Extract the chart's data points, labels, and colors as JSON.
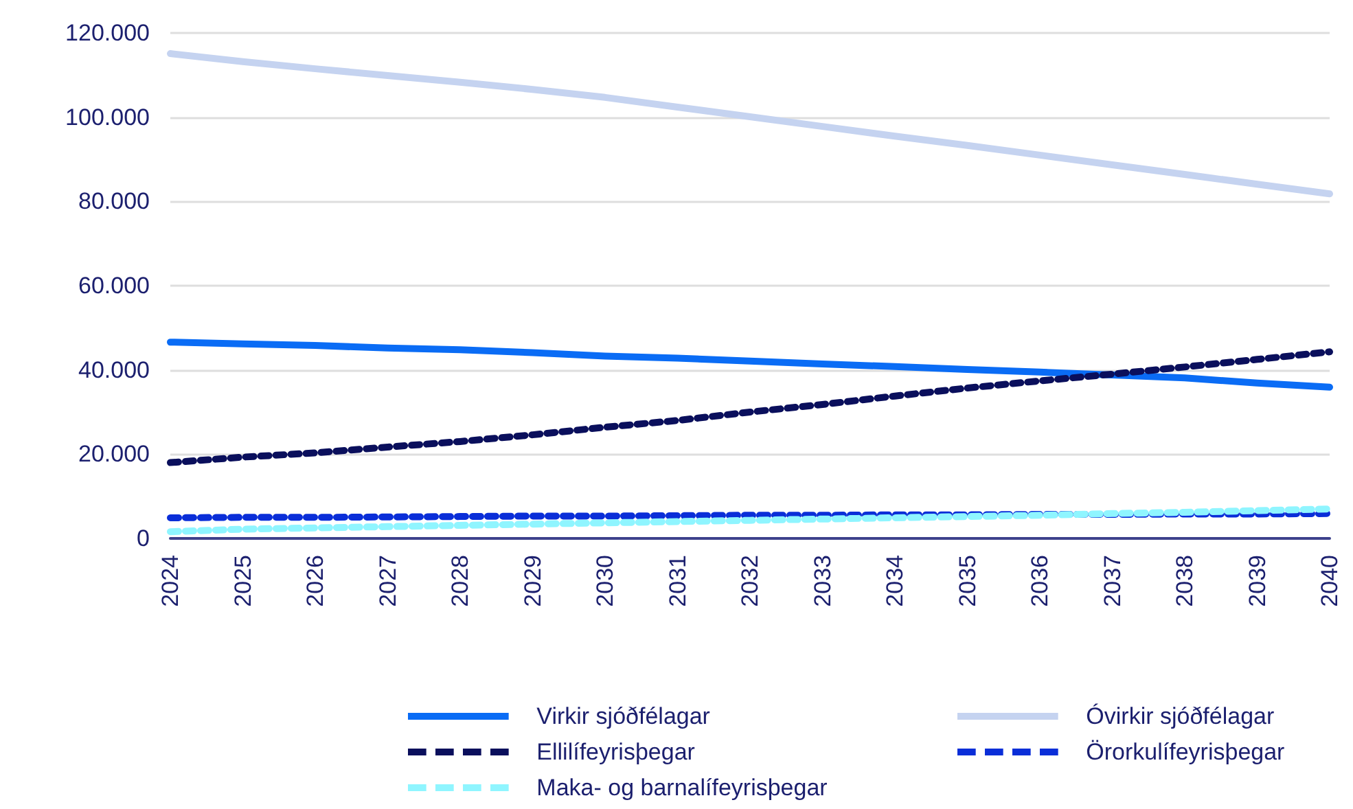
{
  "chart_data": {
    "type": "line",
    "categories": [
      "2024",
      "2025",
      "2026",
      "2027",
      "2028",
      "2029",
      "2030",
      "2031",
      "2032",
      "2033",
      "2034",
      "2035",
      "2036",
      "2037",
      "2038",
      "2039",
      "2040"
    ],
    "series": [
      {
        "name": "Virkir sjóðfélagar",
        "color": "#0a6cf5",
        "line_style": "solid",
        "values": [
          46600,
          46200,
          45800,
          45200,
          44800,
          44100,
          43300,
          42800,
          42100,
          41400,
          40800,
          40100,
          39500,
          38800,
          38100,
          36900,
          35900
        ]
      },
      {
        "name": "Óvirkir sjóðfélagar",
        "color": "#c5d3f0",
        "line_style": "solid",
        "values": [
          115100,
          113200,
          111500,
          109900,
          108300,
          106600,
          104700,
          102400,
          100100,
          97800,
          95500,
          93300,
          91000,
          88700,
          86400,
          84100,
          81800
        ]
      },
      {
        "name": "Ellilífeyrisþegar",
        "color": "#0a0f5c",
        "line_style": "dashed",
        "values": [
          18000,
          19300,
          20300,
          21700,
          23000,
          24600,
          26400,
          28000,
          30000,
          31800,
          33800,
          35700,
          37400,
          39000,
          40700,
          42500,
          44300
        ]
      },
      {
        "name": "Örorkulífeyrisþegar",
        "color": "#0a2ed8",
        "line_style": "dashed",
        "values": [
          4900,
          5000,
          5000,
          5100,
          5200,
          5300,
          5300,
          5400,
          5500,
          5500,
          5600,
          5600,
          5700,
          5700,
          5800,
          5800,
          5900
        ]
      },
      {
        "name": "Maka- og barnalífeyrisþegar",
        "color": "#8ff5ff",
        "line_style": "dashed",
        "values": [
          1600,
          2200,
          2500,
          2800,
          3100,
          3400,
          3700,
          4000,
          4300,
          4600,
          4900,
          5200,
          5500,
          5900,
          6200,
          6600,
          7000
        ]
      }
    ],
    "ylim": [
      0,
      120000
    ],
    "yticks": [
      {
        "value": 0,
        "label": "0"
      },
      {
        "value": 20000,
        "label": "20.000"
      },
      {
        "value": 40000,
        "label": "40.000"
      },
      {
        "value": 60000,
        "label": "60.000"
      },
      {
        "value": 80000,
        "label": "80.000"
      },
      {
        "value": 100000,
        "label": "100.000"
      },
      {
        "value": 120000,
        "label": "120.000"
      }
    ],
    "grid": "y",
    "legend": "bottom",
    "marker": "none"
  }
}
